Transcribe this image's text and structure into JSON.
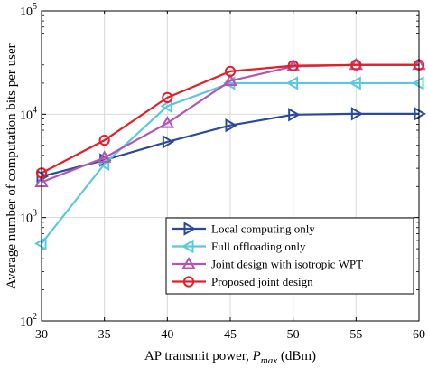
{
  "chart_data": {
    "type": "line",
    "xlabel_main": "AP transmit power, ",
    "xlabel_var": "P",
    "xlabel_sub": "max",
    "xlabel_unit": " (dBm)",
    "ylabel": "Average number of computation bits per user",
    "xlim": [
      30,
      60
    ],
    "ylim": [
      100,
      100000
    ],
    "yscale": "log",
    "grid": true,
    "legend_position": "bottom-right",
    "x_ticks": [
      "30",
      "35",
      "40",
      "45",
      "50",
      "55",
      "60"
    ],
    "y_tick_exponents": [
      "2",
      "3",
      "4",
      "5"
    ],
    "x": [
      30,
      35,
      40,
      45,
      50,
      55,
      60
    ],
    "series": [
      {
        "name": "Local computing only",
        "color": "#2b4a9b",
        "marker": "triangle-right",
        "values": [
          2500,
          3600,
          5400,
          7800,
          9900,
          10100,
          10100
        ]
      },
      {
        "name": "Full offloading only",
        "color": "#5bc8e0",
        "marker": "triangle-left",
        "values": [
          560,
          3300,
          12000,
          20000,
          20000,
          20000,
          20000
        ]
      },
      {
        "name": "Joint design with isotropic WPT",
        "color": "#b455b6",
        "marker": "triangle-up",
        "values": [
          2200,
          3800,
          8200,
          21000,
          29000,
          30000,
          30000
        ]
      },
      {
        "name": "Proposed joint design",
        "color": "#e0202a",
        "marker": "circle",
        "values": [
          2700,
          5600,
          14500,
          26000,
          29500,
          30000,
          30000
        ]
      }
    ]
  }
}
